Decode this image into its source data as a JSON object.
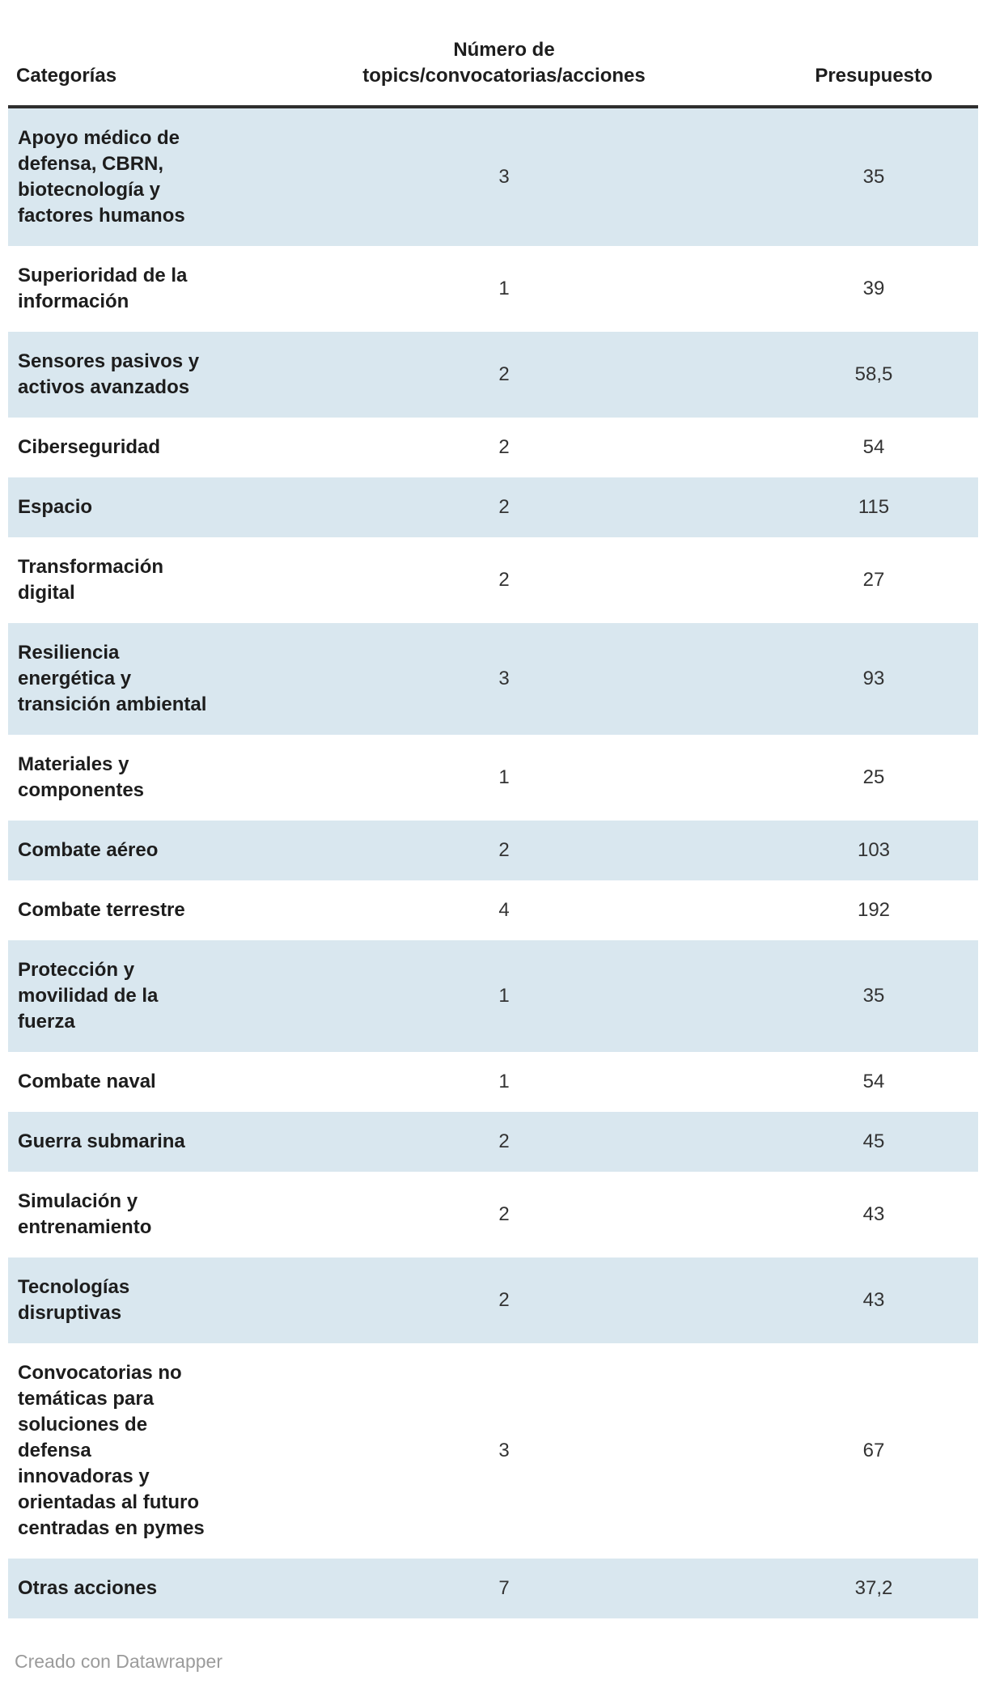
{
  "chart_data": {
    "type": "table",
    "columns": [
      "Categorías",
      "Número de topics/convocatorias/acciones",
      "Presupuesto"
    ],
    "categories": [
      "Apoyo médico de defensa, CBRN, biotecnología y factores humanos",
      "Superioridad de la información",
      "Sensores pasivos y activos avanzados",
      "Ciberseguridad",
      "Espacio",
      "Transformación digital",
      "Resiliencia energética y transición ambiental",
      "Materiales y componentes",
      "Combate aéreo",
      "Combate terrestre",
      "Protección y movilidad de la fuerza",
      "Combate naval",
      "Guerra submarina",
      "Simulación y entrenamiento",
      "Tecnologías disruptivas",
      "Convocatorias no temáticas para soluciones de defensa innovadoras y orientadas al futuro centradas en pymes",
      "Otras acciones"
    ],
    "series": [
      {
        "name": "Número de topics/convocatorias/acciones",
        "values": [
          3,
          1,
          2,
          2,
          2,
          2,
          3,
          1,
          2,
          4,
          1,
          1,
          2,
          2,
          2,
          3,
          7
        ]
      },
      {
        "name": "Presupuesto",
        "values": [
          35,
          39,
          58.5,
          54,
          115,
          27,
          93,
          25,
          103,
          192,
          35,
          54,
          45,
          43,
          43,
          67,
          37.2
        ]
      }
    ],
    "layout": {
      "stripe_rows": true,
      "first_row_striped": true,
      "numeric_alignment": "center"
    }
  },
  "header": {
    "col1": "Categorías",
    "col2": "Número de\ntopics/convocatorias/acciones",
    "col3": "Presupuesto"
  },
  "rows": [
    {
      "category": "Apoyo médico de\ndefensa, CBRN,\nbiotecnología y\nfactores humanos",
      "topics": "3",
      "budget": "35"
    },
    {
      "category": "Superioridad de la\ninformación",
      "topics": "1",
      "budget": "39"
    },
    {
      "category": "Sensores pasivos y\nactivos avanzados",
      "topics": "2",
      "budget": "58,5"
    },
    {
      "category": "Ciberseguridad",
      "topics": "2",
      "budget": "54"
    },
    {
      "category": "Espacio",
      "topics": "2",
      "budget": "115"
    },
    {
      "category": "Transformación\ndigital",
      "topics": "2",
      "budget": "27"
    },
    {
      "category": "Resiliencia\nenergética y\ntransición ambiental",
      "topics": "3",
      "budget": "93"
    },
    {
      "category": "Materiales y\ncomponentes",
      "topics": "1",
      "budget": "25"
    },
    {
      "category": "Combate aéreo",
      "topics": "2",
      "budget": "103"
    },
    {
      "category": "Combate terrestre",
      "topics": "4",
      "budget": "192"
    },
    {
      "category": "Protección y\nmovilidad de la\nfuerza",
      "topics": "1",
      "budget": "35"
    },
    {
      "category": "Combate naval",
      "topics": "1",
      "budget": "54"
    },
    {
      "category": "Guerra submarina",
      "topics": "2",
      "budget": "45"
    },
    {
      "category": "Simulación y\nentrenamiento",
      "topics": "2",
      "budget": "43"
    },
    {
      "category": "Tecnologías\ndisruptivas",
      "topics": "2",
      "budget": "43"
    },
    {
      "category": "Convocatorias no\ntemáticas para\nsoluciones de\ndefensa\ninnovadoras y\norientadas al futuro\ncentradas en pymes",
      "topics": "3",
      "budget": "67"
    },
    {
      "category": "Otras acciones",
      "topics": "7",
      "budget": "37,2"
    }
  ],
  "footer": {
    "credit": "Creado con Datawrapper"
  },
  "colors": {
    "stripe": "#d9e7ef",
    "header_border": "#2e2e2e",
    "category_text": "#1d1d1d",
    "number_text": "#333333",
    "credit_text": "#9b9b9b"
  }
}
